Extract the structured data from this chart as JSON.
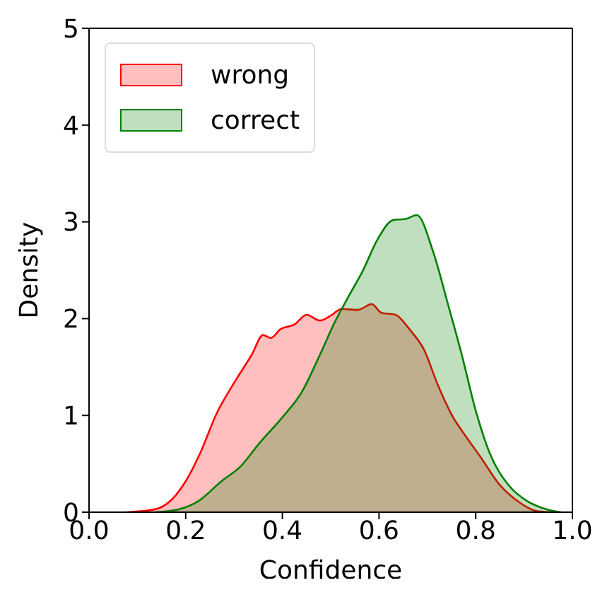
{
  "chart_data": {
    "type": "area",
    "xlabel": "Confidence",
    "ylabel": "Density",
    "xlim": [
      0,
      1
    ],
    "ylim": [
      0,
      5
    ],
    "xticks": [
      {
        "value": 0,
        "label": "0.0"
      },
      {
        "value": 0.2,
        "label": "0.2"
      },
      {
        "value": 0.4,
        "label": "0.4"
      },
      {
        "value": 0.6,
        "label": "0.6"
      },
      {
        "value": 0.8,
        "label": "0.8"
      },
      {
        "value": 1,
        "label": "1.0"
      }
    ],
    "yticks": [
      0,
      1,
      2,
      3,
      4,
      5
    ],
    "legend": "top left",
    "series": [
      {
        "name": "wrong",
        "color": "#ff0000",
        "x": [
          0.079,
          0.137,
          0.171,
          0.2,
          0.23,
          0.264,
          0.303,
          0.337,
          0.36,
          0.376,
          0.396,
          0.425,
          0.45,
          0.478,
          0.503,
          0.522,
          0.556,
          0.585,
          0.605,
          0.634,
          0.663,
          0.693,
          0.722,
          0.751,
          0.78,
          0.81,
          0.85,
          0.888,
          0.927,
          0.956
        ],
        "values": [
          0,
          0.03,
          0.13,
          0.32,
          0.61,
          1.02,
          1.36,
          1.63,
          1.83,
          1.8,
          1.89,
          1.94,
          2.04,
          1.98,
          2.04,
          2.1,
          2.09,
          2.15,
          2.06,
          2.04,
          1.89,
          1.68,
          1.31,
          1.0,
          0.78,
          0.57,
          0.28,
          0.11,
          0.01,
          0
        ]
      },
      {
        "name": "correct",
        "color": "#008000",
        "x": [
          0.137,
          0.186,
          0.225,
          0.274,
          0.313,
          0.352,
          0.4,
          0.44,
          0.478,
          0.508,
          0.537,
          0.566,
          0.596,
          0.63,
          0.655,
          0.678,
          0.712,
          0.742,
          0.771,
          0.8,
          0.829,
          0.868,
          0.908,
          0.947,
          0.976
        ],
        "values": [
          0,
          0.03,
          0.11,
          0.32,
          0.47,
          0.71,
          0.98,
          1.24,
          1.63,
          1.96,
          2.23,
          2.49,
          2.81,
          3.02,
          3.03,
          3.07,
          2.69,
          2.16,
          1.63,
          1.05,
          0.61,
          0.28,
          0.11,
          0.03,
          0
        ]
      }
    ]
  }
}
